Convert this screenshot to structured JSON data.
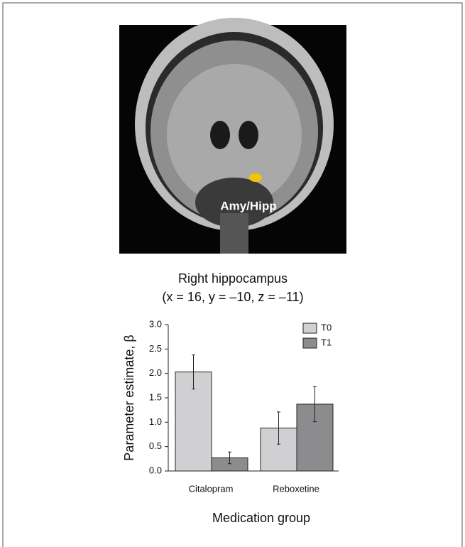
{
  "chart_data": {
    "type": "bar",
    "image_label": "Amy/Hipp",
    "title": "Right hippocampus",
    "subtitle": "(x = 16, y = –10, z = –11)",
    "categories": [
      "Citalopram",
      "Reboxetine"
    ],
    "series": [
      {
        "name": "T0",
        "color": "#d0d0d2",
        "values": [
          2.03,
          0.88
        ],
        "errors": [
          0.35,
          0.33
        ]
      },
      {
        "name": "T1",
        "color": "#8c8c8e",
        "values": [
          0.27,
          1.37
        ],
        "errors": [
          0.12,
          0.36
        ]
      }
    ],
    "ylim": [
      0,
      3
    ],
    "yticks": [
      {
        "value": 0,
        "label": "0.0"
      },
      0.5,
      {
        "value": 1,
        "label": "1.0"
      },
      1.5,
      {
        "value": 2,
        "label": "2.0"
      },
      2.5,
      {
        "value": 3,
        "label": "3.0"
      }
    ],
    "ylabel": "Parameter estimate, β",
    "xlabel": "Medication group",
    "legend": "top-right"
  }
}
